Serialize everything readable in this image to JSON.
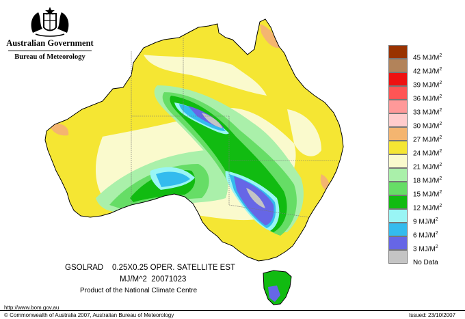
{
  "header": {
    "government": "Australian Government",
    "agency": "Bureau of Meteorology"
  },
  "icons": {
    "crest": "coat-of-arms-icon"
  },
  "legend": {
    "items": [
      {
        "label": "45 MJ/M",
        "sup": "2",
        "color": "#993300"
      },
      {
        "label": "42 MJ/M",
        "sup": "2",
        "color": "#b2835a"
      },
      {
        "label": "39 MJ/M",
        "sup": "2",
        "color": "#ee1111"
      },
      {
        "label": "36 MJ/M",
        "sup": "2",
        "color": "#ff5555"
      },
      {
        "label": "33 MJ/M",
        "sup": "2",
        "color": "#ff9999"
      },
      {
        "label": "30 MJ/M",
        "sup": "2",
        "color": "#ffcccc"
      },
      {
        "label": "27 MJ/M",
        "sup": "2",
        "color": "#f4b570"
      },
      {
        "label": "24 MJ/M",
        "sup": "2",
        "color": "#f5e633"
      },
      {
        "label": "21 MJ/M",
        "sup": "2",
        "color": "#fafacd"
      },
      {
        "label": "18 MJ/M",
        "sup": "2",
        "color": "#aaf0aa"
      },
      {
        "label": "15 MJ/M",
        "sup": "2",
        "color": "#66dd66"
      },
      {
        "label": "12 MJ/M",
        "sup": "2",
        "color": "#11bb11"
      },
      {
        "label": "9 MJ/M",
        "sup": "2",
        "color": "#99f5f5"
      },
      {
        "label": "6 MJ/M",
        "sup": "2",
        "color": "#33bbee"
      },
      {
        "label": "3 MJ/M",
        "sup": "2",
        "color": "#6666e6"
      },
      {
        "label": "No Data",
        "sup": "",
        "color": "#c4c4c4"
      }
    ]
  },
  "caption": {
    "line1": "GSOLRAD    0.25X0.25 OPER. SATELLITE EST",
    "line2": "MJ/M^2  20071023",
    "line3": "Product of the National Climate Centre"
  },
  "footer": {
    "url": "http://www.bom.gov.au",
    "copyright": "© Commonwealth of Australia 2007, Australian Bureau of Meteorology",
    "issued": "Issued: 23/10/2007"
  }
}
